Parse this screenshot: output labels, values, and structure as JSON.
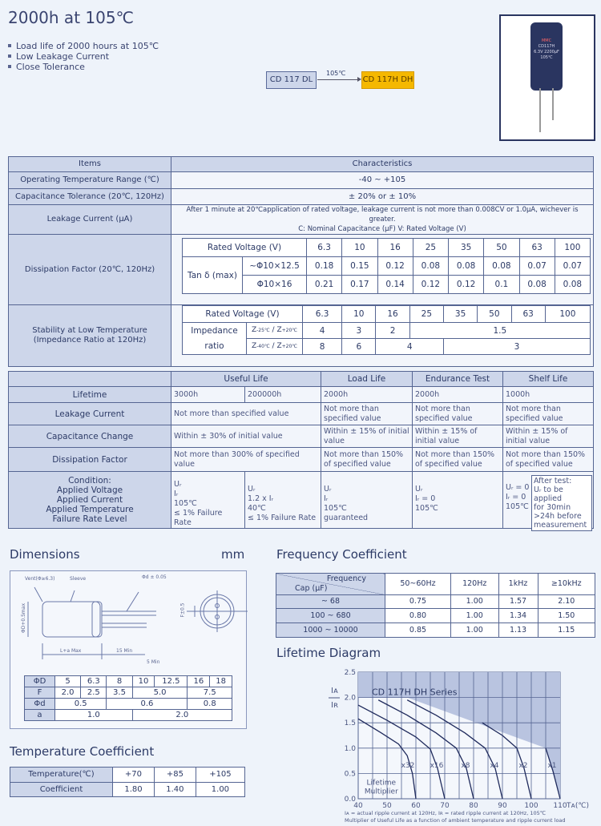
{
  "title": "2000h at 105℃",
  "features": [
    "Load life of 2000 hours at 105℃",
    "Low Leakage Current",
    "Close Tolerance"
  ],
  "flow": {
    "from": "CD 117 DL",
    "label": "105℃",
    "to": "CD 117H DH",
    "to_color": "#f5b800"
  },
  "photo": {
    "icon": "capacitor-photo",
    "marking": [
      "MMC",
      "CD117H",
      "6.3V 2200μF",
      "105℃"
    ]
  },
  "spec": {
    "headers": [
      "Items",
      "Characteristics"
    ],
    "op_temp": {
      "label": "Operating Temperature Range (℃)",
      "value": "-40 ~ +105"
    },
    "cap_tol": {
      "label": "Capacitance Tolerance (20℃, 120Hz)",
      "value": "± 20% or ± 10%"
    },
    "leakage": {
      "label": "Leakage Current (μA)",
      "line1": "After 1 minute at 20℃application of rated voltage, leakage current is not more than 0.008CV or 1.0μA, wichever is greater.",
      "line2": "C: Nominal Capacitance (μF)    V: Rated Voltage (V)"
    },
    "df": {
      "label": "Dissipation Factor (20℃, 120Hz)",
      "rv_label": "Rated Voltage (V)",
      "voltages": [
        "6.3",
        "10",
        "16",
        "25",
        "35",
        "50",
        "63",
        "100"
      ],
      "tan_label": "Tan δ (max)",
      "rows": [
        {
          "size": "~Φ10×12.5",
          "values": [
            "0.18",
            "0.15",
            "0.12",
            "0.08",
            "0.08",
            "0.08",
            "0.07",
            "0.07"
          ]
        },
        {
          "size": "Φ10×16",
          "values": [
            "0.21",
            "0.17",
            "0.14",
            "0.12",
            "0.12",
            "0.1",
            "0.08",
            "0.08"
          ]
        }
      ]
    },
    "stab": {
      "label1": "Stability at Low Temperature",
      "label2": "(Impedance Ratio at 120Hz)",
      "rv_label": "Rated Voltage (V)",
      "imp1": "Impedance",
      "imp2": "ratio",
      "r1": {
        "z": "Z",
        "sub1": "-25℃",
        "sub2": "+20℃",
        "values": [
          "4",
          "3",
          "2",
          "1.5"
        ]
      },
      "r2": {
        "z": "Z",
        "sub1": "-40℃",
        "sub2": "+20℃",
        "values": [
          "8",
          "6",
          "4",
          "3"
        ]
      }
    }
  },
  "life": {
    "headers": [
      "Useful Life",
      "Load Life",
      "Endurance Test",
      "Shelf Life"
    ],
    "lifetime": {
      "label": "Lifetime",
      "values": [
        "3000h",
        "200000h",
        "2000h",
        "2000h",
        "1000h"
      ]
    },
    "leak": {
      "label": "Leakage Current",
      "values": [
        "Not more than specified value",
        "Not more than specified value",
        "Not more than specified value",
        "Not more than specified value"
      ]
    },
    "cap": {
      "label": "Capacitance Change",
      "values": [
        "Within ± 30% of initial value",
        "Within ± 15% of initial value",
        "Within ± 15% of initial value",
        "Within ± 15% of initial value"
      ]
    },
    "df": {
      "label": "Dissipation Factor",
      "values": [
        "Not more than 300% of specified value",
        "Not more than 150% of specified value",
        "Not more than 150% of specified value",
        "Not more than 150% of specified value"
      ]
    },
    "cond": {
      "labels": [
        "Condition:",
        "Applied Voltage",
        "Applied Current",
        "Applied Temperature",
        "Failure Rate Level"
      ],
      "c1": [
        "Uᵣ",
        "Iᵣ",
        "105℃",
        "≤ 1% Failure Rate"
      ],
      "c2": [
        "Uᵣ",
        "1.2 x Iᵣ",
        "40℃",
        "≤ 1% Failure Rate"
      ],
      "c3": [
        "Uᵣ",
        "Iᵣ",
        "105℃",
        "guaranteed"
      ],
      "c4": [
        "Uᵣ",
        "Iᵣ = 0",
        "105℃"
      ],
      "c5": [
        "Uᵣ = 0",
        "Iᵣ = 0",
        "105℃"
      ],
      "note": [
        "After test:",
        "Uᵣ to be applied",
        "for 30min",
        ">24h before",
        "measurement"
      ]
    }
  },
  "dimensions": {
    "title": "Dimensions",
    "unit": "mm",
    "drawing": {
      "vent": "Vent(Φ≥6.3)",
      "sleeve": "Sleeve",
      "lead": "Φd ± 0.05",
      "dia": "ΦD+0.5max",
      "len": "L+a Max",
      "lead_len": "15 Min",
      "min5": "5 Min",
      "pitch": "F±0.5"
    },
    "D": {
      "label": "ΦD",
      "values": [
        "5",
        "6.3",
        "8",
        "10",
        "12.5",
        "16",
        "18"
      ]
    },
    "F": {
      "label": "F",
      "values": [
        "2.0",
        "2.5",
        "3.5",
        "5.0",
        "7.5"
      ]
    },
    "d": {
      "label": "Φd",
      "values": [
        "0.5",
        "0.6",
        "0.8"
      ]
    },
    "a": {
      "label": "a",
      "values": [
        "1.0",
        "2.0"
      ]
    }
  },
  "temp_coef": {
    "title": "Temperature Coefficient",
    "row1": [
      "Temperature(℃)",
      "+70",
      "+85",
      "+105"
    ],
    "row2": [
      "Coefficient",
      "1.80",
      "1.40",
      "1.00"
    ]
  },
  "freq_coef": {
    "title": "Frequency Coefficient",
    "corner_top": "Frequency",
    "corner_bottom": "Cap (μF)",
    "freqs": [
      "50~60Hz",
      "120Hz",
      "1kHz",
      "≥10kHz"
    ],
    "rows": [
      [
        "~ 68",
        "0.75",
        "1.00",
        "1.57",
        "2.10"
      ],
      [
        "100 ~ 680",
        "0.80",
        "1.00",
        "1.34",
        "1.50"
      ],
      [
        "1000 ~ 10000",
        "0.85",
        "1.00",
        "1.13",
        "1.15"
      ]
    ]
  },
  "lifetime_diagram": {
    "title": "Lifetime Diagram",
    "footnote1": "Iᴀ = actual ripple current at 120Hz, Iʀ = rated ripple current at 120Hz, 105℃",
    "footnote2": "Multiplier of Useful Life as a function of ambient temperature and ripple current load"
  },
  "chart_data": {
    "type": "line",
    "title": "CD 117H DH Series",
    "ylabel_top": "Iᴀ",
    "ylabel_bottom": "Iʀ",
    "xlabel": "Tᴀ(℃)",
    "xlim": [
      40,
      110
    ],
    "ylim": [
      0,
      2.5
    ],
    "xticks": [
      "40",
      "50",
      "60",
      "70",
      "80",
      "90",
      "100",
      "110"
    ],
    "yticks": [
      "0.0",
      "0.5",
      "1.0",
      "1.5",
      "2.0",
      "2.5"
    ],
    "grid": true,
    "annotation": [
      "Lifetime",
      "Multiplier"
    ],
    "shade_color": "#b9c4e0",
    "line_color": "#1f2a5c",
    "series": [
      {
        "name": "x32",
        "points": [
          [
            40,
            1.58
          ],
          [
            48,
            1.3
          ],
          [
            54,
            1.08
          ],
          [
            57,
            0.85
          ],
          [
            58.8,
            0.5
          ],
          [
            60,
            0
          ]
        ]
      },
      {
        "name": "x16",
        "points": [
          [
            40,
            1.85
          ],
          [
            50,
            1.55
          ],
          [
            60,
            1.22
          ],
          [
            65,
            0.98
          ],
          [
            67.5,
            0.6
          ],
          [
            70,
            0
          ]
        ]
      },
      {
        "name": "x8",
        "points": [
          [
            47,
            1.95
          ],
          [
            57,
            1.65
          ],
          [
            67,
            1.3
          ],
          [
            74,
            1.0
          ],
          [
            77.5,
            0.6
          ],
          [
            80,
            0
          ]
        ]
      },
      {
        "name": "x4",
        "points": [
          [
            57,
            1.95
          ],
          [
            67,
            1.65
          ],
          [
            77,
            1.3
          ],
          [
            84,
            1.0
          ],
          [
            87.5,
            0.6
          ],
          [
            90,
            0
          ]
        ]
      },
      {
        "name": "x2",
        "points": [
          [
            83,
            1.5
          ],
          [
            90,
            1.25
          ],
          [
            95,
            1.0
          ],
          [
            97.5,
            0.6
          ],
          [
            100,
            0
          ]
        ]
      },
      {
        "name": "x1",
        "points": [
          [
            105,
            1.0
          ],
          [
            107.5,
            0.55
          ],
          [
            110,
            0
          ]
        ]
      }
    ]
  }
}
